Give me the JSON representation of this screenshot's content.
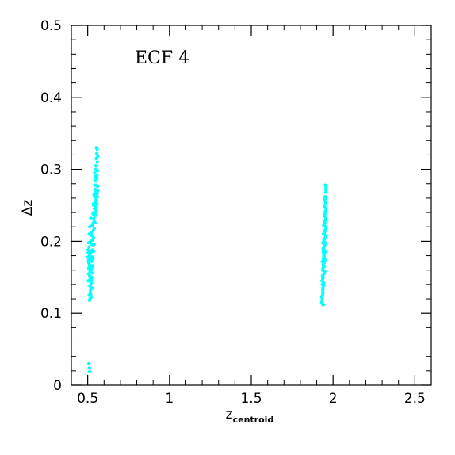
{
  "chart_data": {
    "type": "scatter",
    "title": "",
    "annotation": "ECF 4",
    "xlabel": {
      "main": "z",
      "sub": "centroid"
    },
    "ylabel": "Δz",
    "xlim": [
      0.4,
      2.6
    ],
    "ylim": [
      0,
      0.5
    ],
    "xticks": [
      0.5,
      1,
      1.5,
      2,
      2.5
    ],
    "xtick_labels": [
      "0.5",
      "1",
      "1.5",
      "2",
      "2.5"
    ],
    "yticks": [
      0,
      0.1,
      0.2,
      0.3,
      0.4,
      0.5
    ],
    "ytick_labels": [
      "0",
      "0.1",
      "0.2",
      "0.3",
      "0.4",
      "0.5"
    ],
    "x_minor_step": 0.1,
    "y_minor_step": 0.02,
    "grid": false,
    "legend": "none",
    "marker_color": "#00ffff",
    "series": [
      {
        "points": [
          [
            0.505,
            0.155
          ],
          [
            0.51,
            0.168
          ],
          [
            0.512,
            0.18
          ],
          [
            0.508,
            0.192
          ],
          [
            0.515,
            0.175
          ],
          [
            0.52,
            0.16
          ],
          [
            0.503,
            0.145
          ],
          [
            0.518,
            0.2
          ],
          [
            0.522,
            0.185
          ],
          [
            0.507,
            0.17
          ],
          [
            0.513,
            0.138
          ],
          [
            0.525,
            0.15
          ],
          [
            0.516,
            0.128
          ],
          [
            0.52,
            0.122
          ],
          [
            0.528,
            0.135
          ],
          [
            0.51,
            0.21
          ],
          [
            0.505,
            0.198
          ],
          [
            0.512,
            0.22
          ],
          [
            0.518,
            0.232
          ],
          [
            0.523,
            0.212
          ],
          [
            0.508,
            0.183
          ],
          [
            0.514,
            0.158
          ],
          [
            0.519,
            0.146
          ],
          [
            0.527,
            0.165
          ],
          [
            0.53,
            0.178
          ],
          [
            0.532,
            0.195
          ],
          [
            0.535,
            0.205
          ],
          [
            0.533,
            0.225
          ],
          [
            0.538,
            0.24
          ],
          [
            0.54,
            0.218
          ],
          [
            0.536,
            0.25
          ],
          [
            0.542,
            0.262
          ],
          [
            0.545,
            0.272
          ],
          [
            0.548,
            0.285
          ],
          [
            0.543,
            0.295
          ],
          [
            0.55,
            0.305
          ],
          [
            0.552,
            0.315
          ],
          [
            0.555,
            0.322
          ],
          [
            0.558,
            0.328
          ],
          [
            0.553,
            0.33
          ],
          [
            0.56,
            0.298
          ],
          [
            0.556,
            0.288
          ],
          [
            0.549,
            0.268
          ],
          [
            0.546,
            0.255
          ],
          [
            0.541,
            0.245
          ],
          [
            0.537,
            0.232
          ],
          [
            0.534,
            0.215
          ],
          [
            0.531,
            0.202
          ],
          [
            0.529,
            0.188
          ],
          [
            0.526,
            0.172
          ],
          [
            0.524,
            0.162
          ],
          [
            0.521,
            0.142
          ],
          [
            0.517,
            0.132
          ],
          [
            0.514,
            0.12
          ],
          [
            0.511,
            0.118
          ],
          [
            0.509,
            0.125
          ],
          [
            0.506,
            0.162
          ],
          [
            0.504,
            0.172
          ],
          [
            0.502,
            0.188
          ],
          [
            0.501,
            0.178
          ],
          [
            0.539,
            0.228
          ],
          [
            0.544,
            0.238
          ],
          [
            0.547,
            0.248
          ],
          [
            0.551,
            0.258
          ],
          [
            0.554,
            0.278
          ],
          [
            0.557,
            0.292
          ],
          [
            0.559,
            0.31
          ],
          [
            0.561,
            0.318
          ],
          [
            0.549,
            0.3
          ],
          [
            0.546,
            0.29
          ],
          [
            0.542,
            0.278
          ],
          [
            0.538,
            0.265
          ],
          [
            0.535,
            0.252
          ],
          [
            0.532,
            0.238
          ],
          [
            0.528,
            0.222
          ],
          [
            0.525,
            0.208
          ],
          [
            0.522,
            0.196
          ],
          [
            0.519,
            0.186
          ],
          [
            0.516,
            0.176
          ],
          [
            0.513,
            0.166
          ],
          [
            0.545,
            0.226
          ],
          [
            0.548,
            0.236
          ],
          [
            0.551,
            0.246
          ],
          [
            0.554,
            0.256
          ],
          [
            0.557,
            0.266
          ],
          [
            0.56,
            0.276
          ],
          [
            0.54,
            0.196
          ],
          [
            0.536,
            0.186
          ],
          [
            0.533,
            0.176
          ],
          [
            0.53,
            0.166
          ],
          [
            0.527,
            0.156
          ],
          [
            0.524,
            0.146
          ],
          [
            0.521,
            0.136
          ],
          [
            0.518,
            0.126
          ],
          [
            0.515,
            0.148
          ],
          [
            0.512,
            0.152
          ],
          [
            0.509,
            0.164
          ],
          [
            0.506,
            0.174
          ],
          [
            0.503,
            0.184
          ],
          [
            0.55,
            0.236
          ],
          [
            0.553,
            0.242
          ],
          [
            0.556,
            0.252
          ],
          [
            0.559,
            0.262
          ],
          [
            0.562,
            0.27
          ],
          [
            0.507,
            0.03
          ],
          [
            0.51,
            0.024
          ],
          [
            0.512,
            0.019
          ]
        ]
      },
      {
        "points": [
          [
            1.93,
            0.115
          ],
          [
            1.935,
            0.125
          ],
          [
            1.938,
            0.135
          ],
          [
            1.932,
            0.145
          ],
          [
            1.94,
            0.15
          ],
          [
            1.936,
            0.16
          ],
          [
            1.942,
            0.165
          ],
          [
            1.934,
            0.172
          ],
          [
            1.945,
            0.178
          ],
          [
            1.939,
            0.185
          ],
          [
            1.944,
            0.192
          ],
          [
            1.937,
            0.198
          ],
          [
            1.947,
            0.203
          ],
          [
            1.941,
            0.21
          ],
          [
            1.949,
            0.215
          ],
          [
            1.943,
            0.222
          ],
          [
            1.95,
            0.228
          ],
          [
            1.946,
            0.235
          ],
          [
            1.952,
            0.242
          ],
          [
            1.948,
            0.248
          ],
          [
            1.953,
            0.255
          ],
          [
            1.951,
            0.262
          ],
          [
            1.955,
            0.268
          ],
          [
            1.954,
            0.272
          ],
          [
            1.957,
            0.275
          ],
          [
            1.952,
            0.278
          ],
          [
            1.933,
            0.118
          ],
          [
            1.938,
            0.128
          ],
          [
            1.941,
            0.138
          ],
          [
            1.936,
            0.148
          ],
          [
            1.944,
            0.155
          ],
          [
            1.939,
            0.163
          ],
          [
            1.946,
            0.17
          ],
          [
            1.94,
            0.176
          ],
          [
            1.948,
            0.182
          ],
          [
            1.942,
            0.188
          ],
          [
            1.95,
            0.195
          ],
          [
            1.945,
            0.2
          ],
          [
            1.953,
            0.206
          ],
          [
            1.947,
            0.212
          ],
          [
            1.955,
            0.218
          ],
          [
            1.949,
            0.225
          ],
          [
            1.956,
            0.232
          ],
          [
            1.951,
            0.238
          ],
          [
            1.957,
            0.245
          ],
          [
            1.954,
            0.252
          ],
          [
            1.931,
            0.122
          ],
          [
            1.937,
            0.132
          ],
          [
            1.943,
            0.142
          ],
          [
            1.935,
            0.152
          ],
          [
            1.949,
            0.158
          ],
          [
            1.94,
            0.168
          ],
          [
            1.951,
            0.174
          ],
          [
            1.943,
            0.18
          ],
          [
            1.954,
            0.186
          ],
          [
            1.946,
            0.193
          ],
          [
            1.956,
            0.208
          ],
          [
            1.95,
            0.214
          ],
          [
            1.958,
            0.22
          ],
          [
            1.953,
            0.23
          ],
          [
            1.944,
            0.202
          ],
          [
            1.939,
            0.19
          ],
          [
            1.934,
            0.14
          ],
          [
            1.947,
            0.165
          ],
          [
            1.952,
            0.198
          ],
          [
            1.955,
            0.24
          ],
          [
            1.941,
            0.112
          ],
          [
            1.936,
            0.112
          ],
          [
            1.958,
            0.26
          ],
          [
            1.948,
            0.258
          ]
        ]
      }
    ]
  }
}
